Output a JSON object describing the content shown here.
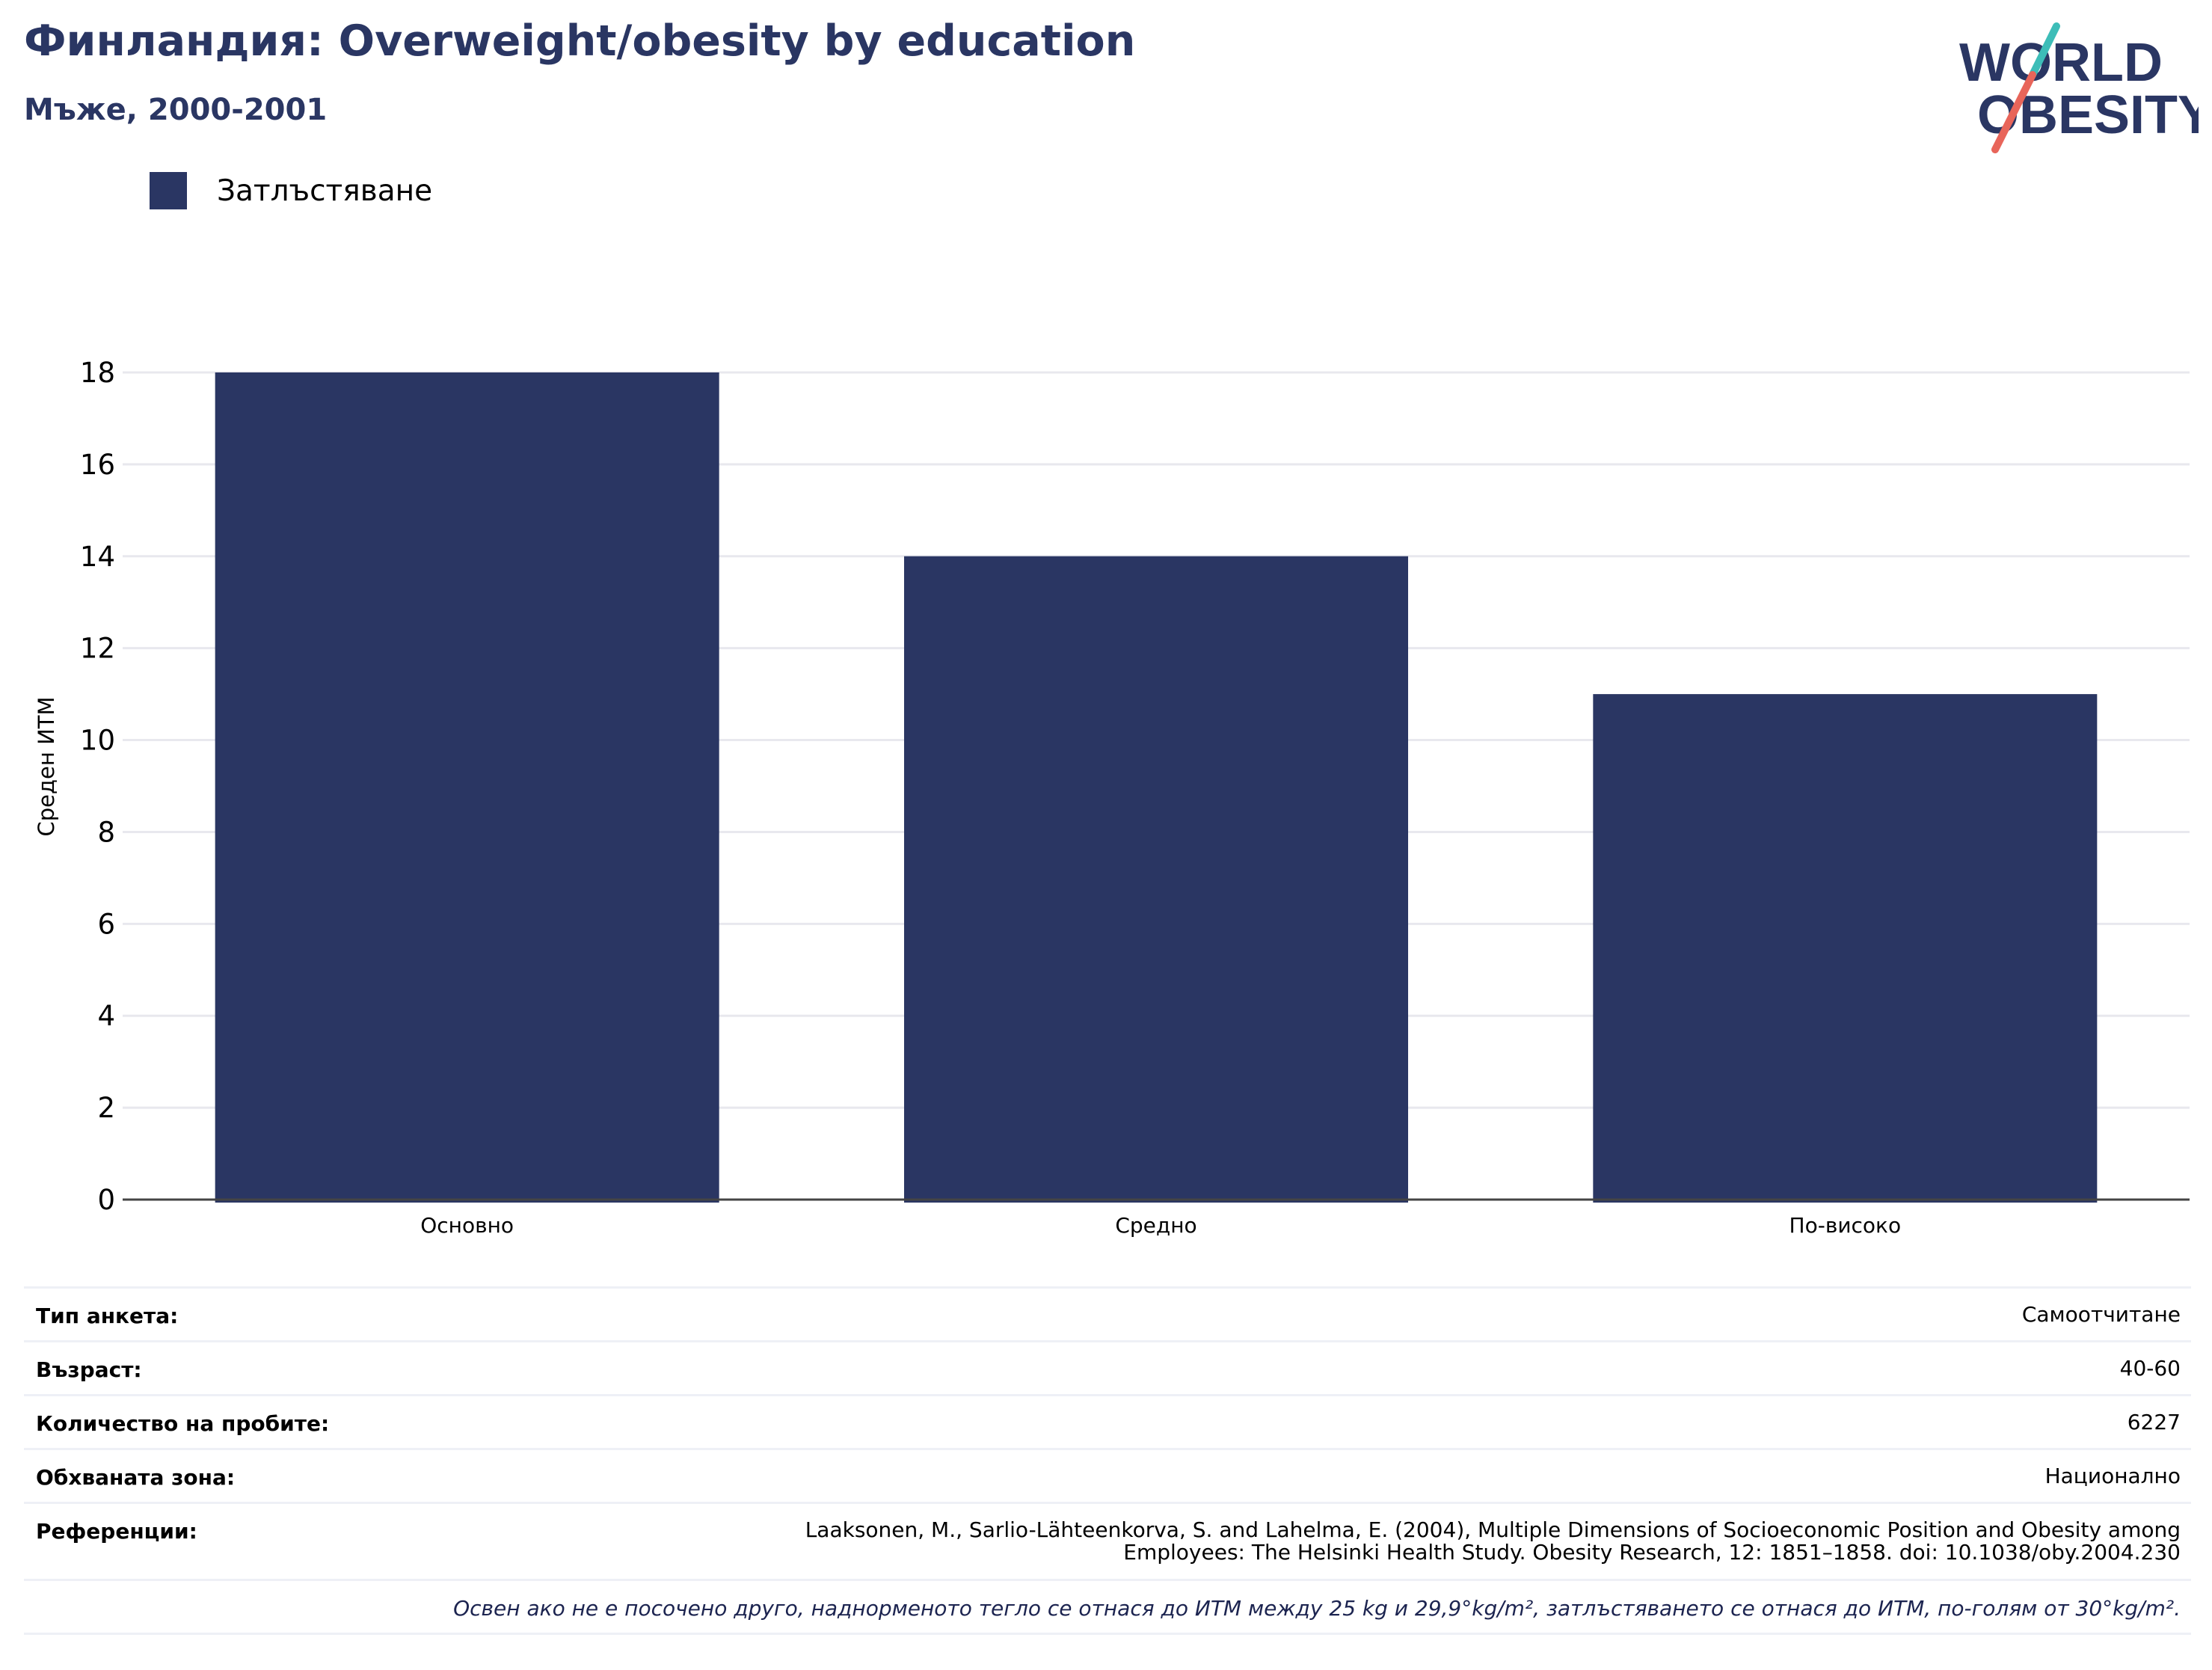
{
  "header": {
    "title": "Финландия: Overweight/obesity by education",
    "subtitle": "Мъже, 2000-2001"
  },
  "logo": {
    "line1": "WORLD",
    "line2": "OBESITY",
    "text_color": "#2a3663",
    "slash_teal": "#3dbdb8",
    "slash_red": "#e8655a"
  },
  "legend": {
    "label": "Затлъстяване",
    "color": "#2a3663"
  },
  "chart_data": {
    "type": "bar",
    "categories": [
      "Основно",
      "Средно",
      "По-високо"
    ],
    "series": [
      {
        "name": "Затлъстяване",
        "values": [
          18,
          14,
          11
        ],
        "color": "#2a3663"
      }
    ],
    "ylabel": "Среден ИТМ",
    "xlabel": "",
    "ylim": [
      0,
      18
    ],
    "yticks": [
      0,
      2,
      4,
      6,
      8,
      10,
      12,
      14,
      16,
      18
    ],
    "grid": true,
    "legend_position": "top-left"
  },
  "meta": {
    "survey_type_label": "Тип анкета:",
    "survey_type_value": "Самоотчитане",
    "age_label": "Възраст:",
    "age_value": "40-60",
    "sample_size_label": "Количество на пробите:",
    "sample_size_value": "6227",
    "area_label": "Обхваната зона:",
    "area_value": "Национално",
    "references_label": "Референции:",
    "references_line1": "Laaksonen, M., Sarlio-Lähteenkorva, S. and Lahelma, E. (2004), Multiple Dimensions of Socioeconomic Position and Obesity among",
    "references_line2": "Employees: The Helsinki Health Study. Obesity Research, 12: 1851–1858. doi: 10.1038/oby.2004.230",
    "footnote": "Освен ако не е посочено друго, наднорменото тегло се отнася до ИТМ между 25 kg и 29,9°kg/m², затлъстяването се отнася до ИТМ, по-голям от 30°kg/m²."
  }
}
